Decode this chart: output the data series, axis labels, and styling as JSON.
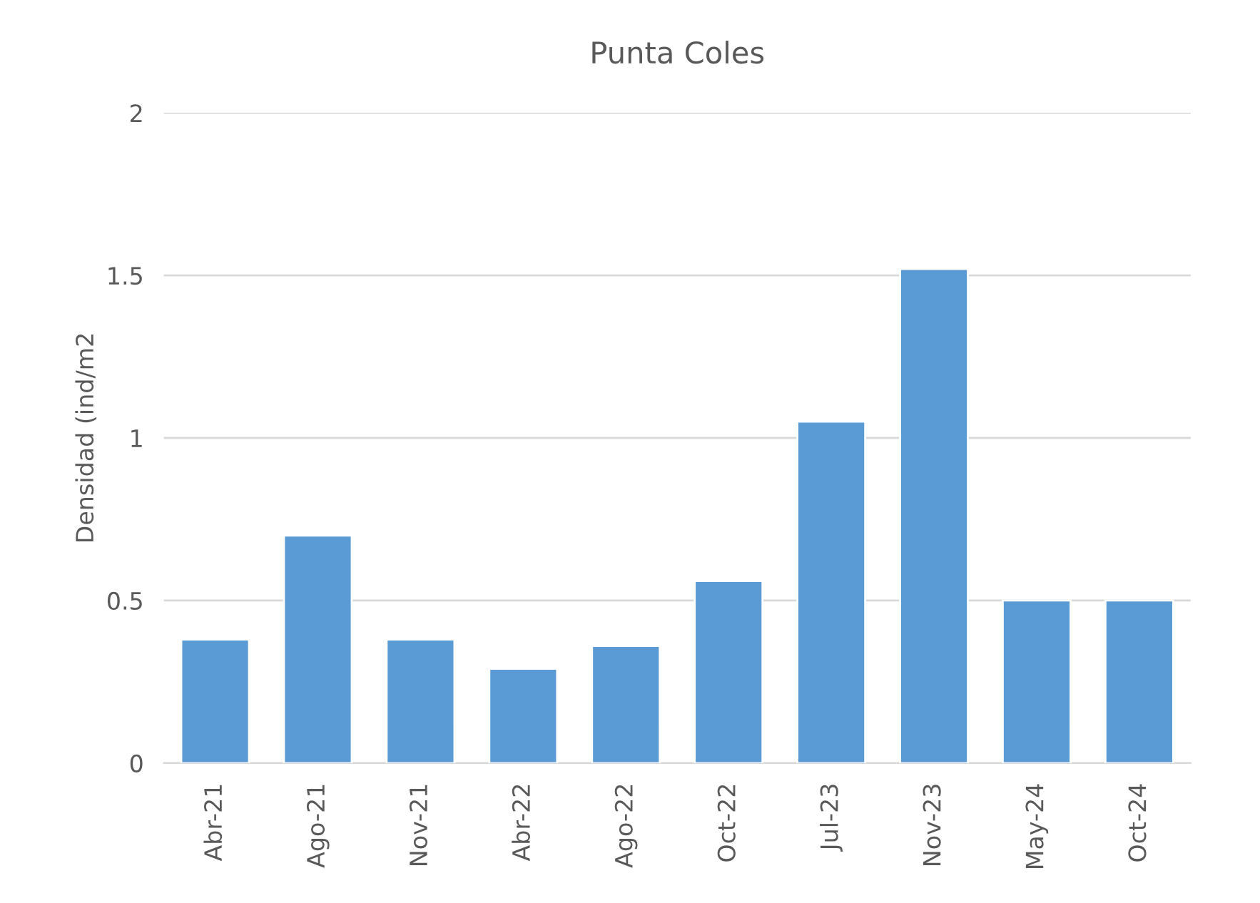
{
  "chart_data": {
    "type": "bar",
    "title": "Punta Coles",
    "ylabel": "Densidad (ind/m2",
    "categories": [
      "Abr-21",
      "Ago-21",
      "Nov-21",
      "Abr-22",
      "Ago-22",
      "Oct-22",
      "Jul-23",
      "Nov-23",
      "May-24",
      "Oct-24"
    ],
    "values": [
      0.38,
      0.7,
      0.38,
      0.29,
      0.36,
      0.56,
      1.05,
      1.52,
      0.5,
      0.5
    ],
    "color": "#5b9bd5",
    "ylim": [
      0,
      2
    ],
    "yticks": [
      0,
      0.5,
      1,
      1.5,
      2
    ],
    "grid": "y"
  }
}
